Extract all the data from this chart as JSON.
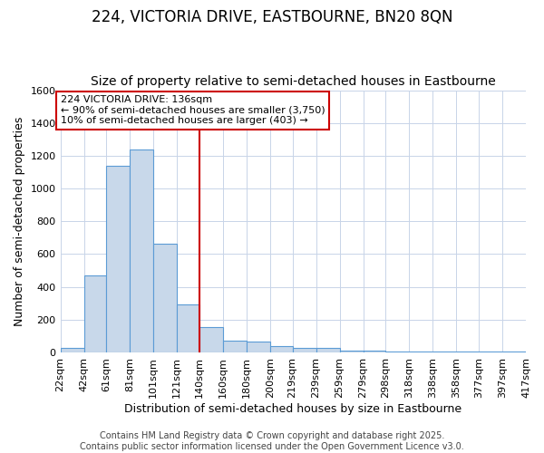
{
  "title": "224, VICTORIA DRIVE, EASTBOURNE, BN20 8QN",
  "subtitle": "Size of property relative to semi-detached houses in Eastbourne",
  "xlabel": "Distribution of semi-detached houses by size in Eastbourne",
  "ylabel": "Number of semi-detached properties",
  "footer_line1": "Contains HM Land Registry data © Crown copyright and database right 2025.",
  "footer_line2": "Contains public sector information licensed under the Open Government Licence v3.0.",
  "bin_edges": [
    22,
    42,
    61,
    81,
    101,
    121,
    140,
    160,
    180,
    200,
    219,
    239,
    259,
    279,
    298,
    318,
    338,
    358,
    377,
    397,
    417
  ],
  "bin_labels": [
    "22sqm",
    "42sqm",
    "61sqm",
    "81sqm",
    "101sqm",
    "121sqm",
    "140sqm",
    "160sqm",
    "180sqm",
    "200sqm",
    "219sqm",
    "239sqm",
    "259sqm",
    "279sqm",
    "298sqm",
    "318sqm",
    "338sqm",
    "358sqm",
    "377sqm",
    "397sqm",
    "417sqm"
  ],
  "bar_heights": [
    25,
    470,
    1140,
    1240,
    665,
    295,
    155,
    70,
    65,
    40,
    30,
    25,
    10,
    10,
    5,
    5,
    5,
    5,
    5,
    5
  ],
  "bar_color": "#c8d8ea",
  "bar_edge_color": "#5b9bd5",
  "vline_x": 140,
  "vline_color": "#cc0000",
  "annotation_text": "224 VICTORIA DRIVE: 136sqm\n← 90% of semi-detached houses are smaller (3,750)\n10% of semi-detached houses are larger (403) →",
  "annotation_box_color": "#ffffff",
  "annotation_box_edge_color": "#cc0000",
  "ylim": [
    0,
    1600
  ],
  "yticks": [
    0,
    200,
    400,
    600,
    800,
    1000,
    1200,
    1400,
    1600
  ],
  "background_color": "#ffffff",
  "plot_background_color": "#ffffff",
  "grid_color": "#c8d4e8",
  "title_fontsize": 12,
  "subtitle_fontsize": 10,
  "axis_label_fontsize": 9,
  "tick_fontsize": 8,
  "footer_fontsize": 7
}
